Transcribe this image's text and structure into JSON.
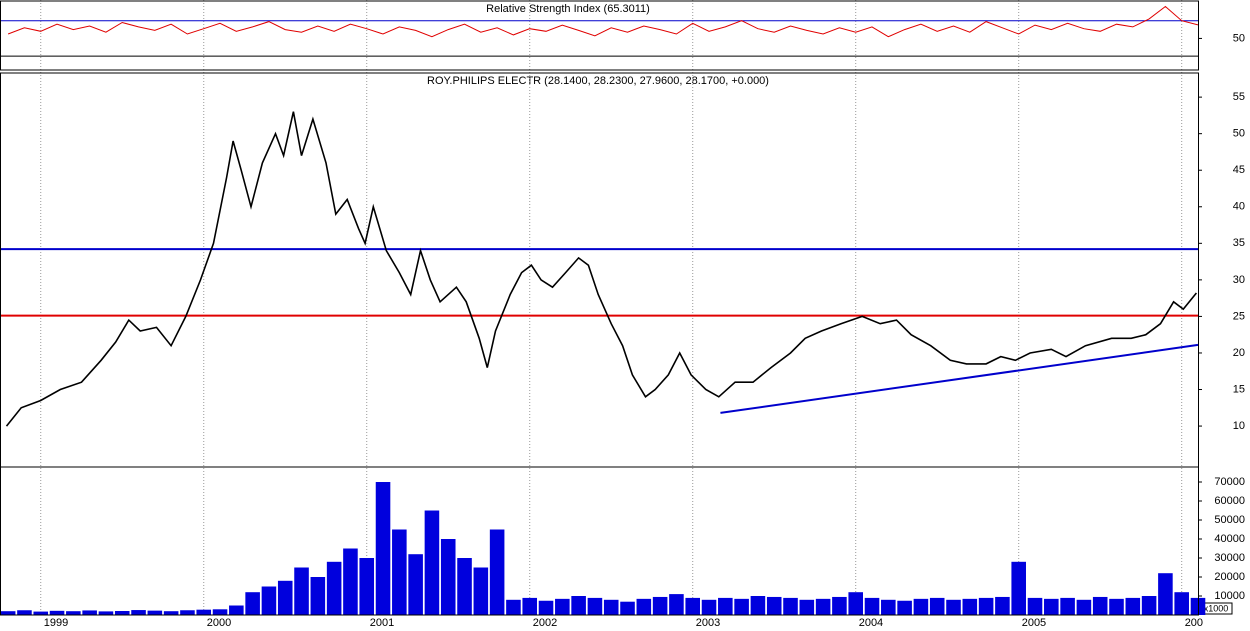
{
  "chart_data": [
    {
      "type": "line",
      "title": "Relative Strength Index (65.3011)",
      "color": "#e00000",
      "xlim": [
        1998.75,
        2006.1
      ],
      "ylim": [
        14.4,
        92.2
      ],
      "yticks": [
        50
      ],
      "hlines": [
        {
          "value": 70,
          "color": "#0000cc"
        },
        {
          "value": 30,
          "color": "#000000"
        }
      ],
      "x": [
        1998.8,
        1998.9,
        1999.0,
        1999.1,
        1999.2,
        1999.3,
        1999.4,
        1999.5,
        1999.6,
        1999.7,
        1999.8,
        1999.9,
        2000.0,
        2000.1,
        2000.2,
        2000.3,
        2000.4,
        2000.5,
        2000.6,
        2000.7,
        2000.8,
        2000.9,
        2001.0,
        2001.1,
        2001.2,
        2001.3,
        2001.4,
        2001.5,
        2001.6,
        2001.7,
        2001.8,
        2001.9,
        2002.0,
        2002.1,
        2002.2,
        2002.3,
        2002.4,
        2002.5,
        2002.6,
        2002.7,
        2002.8,
        2002.9,
        2003.0,
        2003.1,
        2003.2,
        2003.3,
        2003.4,
        2003.5,
        2003.6,
        2003.7,
        2003.8,
        2003.9,
        2004.0,
        2004.1,
        2004.2,
        2004.3,
        2004.4,
        2004.5,
        2004.6,
        2004.7,
        2004.8,
        2004.9,
        2005.0,
        2005.1,
        2005.2,
        2005.3,
        2005.4,
        2005.5,
        2005.6,
        2005.7,
        2005.8,
        2005.9,
        2006.0,
        2006.1
      ],
      "values": [
        55,
        62,
        58,
        66,
        60,
        64,
        57,
        68,
        63,
        59,
        66,
        55,
        61,
        67,
        58,
        63,
        69,
        60,
        57,
        64,
        58,
        66,
        61,
        55,
        63,
        59,
        52,
        60,
        66,
        57,
        62,
        54,
        61,
        58,
        65,
        59,
        53,
        62,
        57,
        64,
        60,
        55,
        67,
        58,
        63,
        70,
        61,
        57,
        64,
        59,
        55,
        62,
        57,
        63,
        52,
        60,
        66,
        58,
        64,
        57,
        69,
        62,
        55,
        65,
        60,
        67,
        61,
        58,
        66,
        63,
        72,
        86,
        70,
        65.3
      ]
    },
    {
      "type": "line",
      "title": "ROY.PHILIPS ELECTR (28.1400, 28.2300, 27.9600, 28.1700, +0.000)",
      "color": "#000000",
      "xlim": [
        1998.75,
        2006.1
      ],
      "ylim": [
        4.4,
        58.3
      ],
      "yticks": [
        10,
        15,
        20,
        25,
        30,
        35,
        40,
        45,
        50,
        55
      ],
      "hlines": [
        {
          "value": 34.2,
          "color": "#0000cc"
        },
        {
          "value": 25.1,
          "color": "#e00000"
        }
      ],
      "trendline": {
        "x": [
          2003.17,
          2006.1
        ],
        "values": [
          11.8,
          21.1
        ],
        "color": "#0000cc"
      },
      "x": [
        1998.79,
        1998.88,
        1999.0,
        1999.12,
        1999.25,
        1999.37,
        1999.46,
        1999.54,
        1999.61,
        1999.71,
        1999.8,
        1999.89,
        1999.98,
        2000.06,
        2000.14,
        2000.18,
        2000.23,
        2000.29,
        2000.36,
        2000.44,
        2000.49,
        2000.55,
        2000.6,
        2000.67,
        2000.75,
        2000.81,
        2000.88,
        2000.95,
        2000.99,
        2001.04,
        2001.12,
        2001.2,
        2001.27,
        2001.33,
        2001.39,
        2001.45,
        2001.55,
        2001.61,
        2001.69,
        2001.74,
        2001.79,
        2001.88,
        2001.95,
        2002.01,
        2002.07,
        2002.14,
        2002.22,
        2002.3,
        2002.36,
        2002.42,
        2002.5,
        2002.57,
        2002.63,
        2002.71,
        2002.77,
        2002.85,
        2002.92,
        2002.99,
        2003.08,
        2003.16,
        2003.26,
        2003.37,
        2003.48,
        2003.6,
        2003.69,
        2003.79,
        2003.91,
        2004.04,
        2004.15,
        2004.25,
        2004.34,
        2004.46,
        2004.58,
        2004.68,
        2004.8,
        2004.89,
        2004.98,
        2005.07,
        2005.2,
        2005.29,
        2005.41,
        2005.57,
        2005.69,
        2005.78,
        2005.87,
        2005.95,
        2006.01,
        2006.09
      ],
      "values": [
        10,
        12.5,
        13.5,
        15,
        16,
        19,
        21.5,
        24.5,
        23,
        23.5,
        21,
        25,
        30,
        35,
        44,
        49,
        45,
        40,
        46,
        50,
        47,
        53,
        47,
        52,
        46,
        39,
        41,
        37,
        35,
        40,
        34,
        31,
        28,
        34,
        30,
        27,
        29,
        27,
        22,
        18,
        23,
        28,
        31,
        32,
        30,
        29,
        31,
        33,
        32,
        28,
        24,
        21,
        17,
        14,
        15,
        17,
        20,
        17,
        15,
        14,
        16,
        16,
        18,
        20,
        22,
        23,
        24,
        25,
        24,
        24.5,
        22.5,
        21,
        19,
        18.5,
        18.5,
        19.5,
        19,
        20,
        20.5,
        19.5,
        21,
        22,
        22,
        22.5,
        24,
        27,
        26,
        28.2
      ]
    },
    {
      "type": "bar",
      "color": "#0000dd",
      "unit_note": "x1000",
      "xlim": [
        1998.75,
        2006.1
      ],
      "ylim": [
        0,
        77900
      ],
      "yticks": [
        10000,
        20000,
        30000,
        40000,
        50000,
        60000,
        70000
      ],
      "xticks": [
        1999,
        2000,
        2001,
        2002,
        2003,
        2004,
        2005,
        {
          "value": 2006,
          "label": "200"
        }
      ],
      "x": [
        1998.8,
        1998.9,
        1999.0,
        1999.1,
        1999.2,
        1999.3,
        1999.4,
        1999.5,
        1999.6,
        1999.7,
        1999.8,
        1999.9,
        2000.0,
        2000.1,
        2000.2,
        2000.3,
        2000.4,
        2000.5,
        2000.6,
        2000.7,
        2000.8,
        2000.9,
        2001.0,
        2001.1,
        2001.2,
        2001.3,
        2001.4,
        2001.5,
        2001.6,
        2001.7,
        2001.8,
        2001.9,
        2002.0,
        2002.1,
        2002.2,
        2002.3,
        2002.4,
        2002.5,
        2002.6,
        2002.7,
        2002.8,
        2002.9,
        2003.0,
        2003.1,
        2003.2,
        2003.3,
        2003.4,
        2003.5,
        2003.6,
        2003.7,
        2003.8,
        2003.9,
        2004.0,
        2004.1,
        2004.2,
        2004.3,
        2004.4,
        2004.5,
        2004.6,
        2004.7,
        2004.8,
        2004.9,
        2005.0,
        2005.1,
        2005.2,
        2005.3,
        2005.4,
        2005.5,
        2005.6,
        2005.7,
        2005.8,
        2005.9,
        2006.0,
        2006.1
      ],
      "values": [
        2000,
        2500,
        1800,
        2200,
        2000,
        2400,
        1900,
        2100,
        2600,
        2300,
        2000,
        2500,
        2800,
        3000,
        5000,
        12000,
        15000,
        18000,
        25000,
        20000,
        28000,
        35000,
        30000,
        70000,
        45000,
        32000,
        55000,
        40000,
        30000,
        25000,
        45000,
        8000,
        9000,
        7500,
        8500,
        10000,
        9000,
        8000,
        7000,
        8500,
        9500,
        11000,
        9000,
        8000,
        9000,
        8500,
        10000,
        9500,
        9000,
        8000,
        8500,
        9500,
        12000,
        9000,
        8000,
        7500,
        8500,
        9000,
        8000,
        8500,
        9000,
        9500,
        28000,
        9000,
        8500,
        9000,
        8000,
        9500,
        8500,
        9000,
        10000,
        22000,
        12000,
        9000
      ]
    }
  ]
}
